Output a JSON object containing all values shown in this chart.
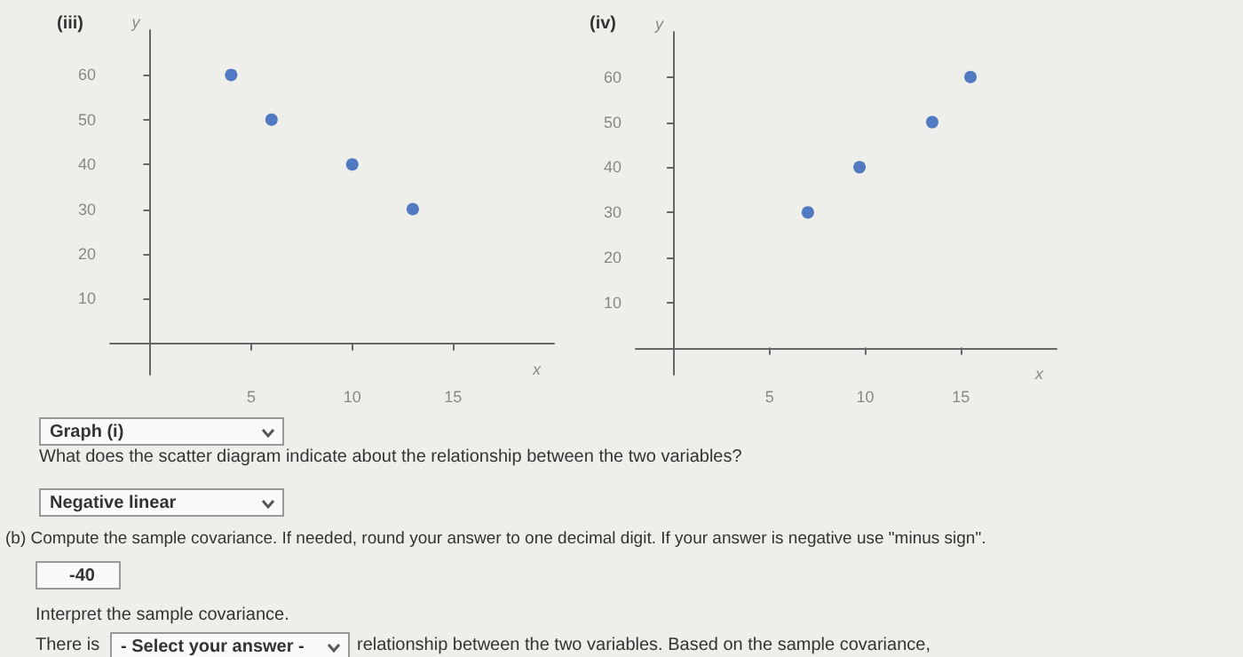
{
  "chart_data": [
    {
      "type": "scatter",
      "title": "(iii)",
      "xlabel": "x",
      "ylabel": "y",
      "x": [
        4,
        6,
        10,
        13
      ],
      "values": [
        60,
        50,
        40,
        30
      ],
      "color": "#2a5cb8",
      "marker": "circle",
      "grid": false,
      "xlim": [
        -2,
        20
      ],
      "ylim": [
        -7,
        70
      ],
      "xticks": [
        5,
        10,
        15
      ],
      "yticks": [
        10,
        20,
        30,
        40,
        50,
        60
      ]
    },
    {
      "type": "scatter",
      "title": "(iv)",
      "xlabel": "x",
      "ylabel": "y",
      "x": [
        7,
        9.7,
        13.5,
        15.5
      ],
      "values": [
        30,
        40,
        50,
        60
      ],
      "color": "#2a5cb8",
      "marker": "circle",
      "grid": false,
      "xlim": [
        -2,
        20
      ],
      "ylim": [
        -6,
        70
      ],
      "xticks": [
        5,
        10,
        15
      ],
      "yticks": [
        10,
        20,
        30,
        40,
        50,
        60
      ]
    },
    {
      "type": "other",
      "annotations": [
        "Graph (i)",
        "What does the scatter diagram indicate about the relationship between the two variables?",
        "Negative linear",
        "(b) Compute the sample covariance. If needed, round your answer to one decimal digit. If your answer is negative use \"minus sign\".",
        "-40",
        "Interpret the sample covariance.",
        "There is",
        "- Select your answer -",
        "relationship between the two variables. Based on the sample covariance,"
      ]
    }
  ]
}
